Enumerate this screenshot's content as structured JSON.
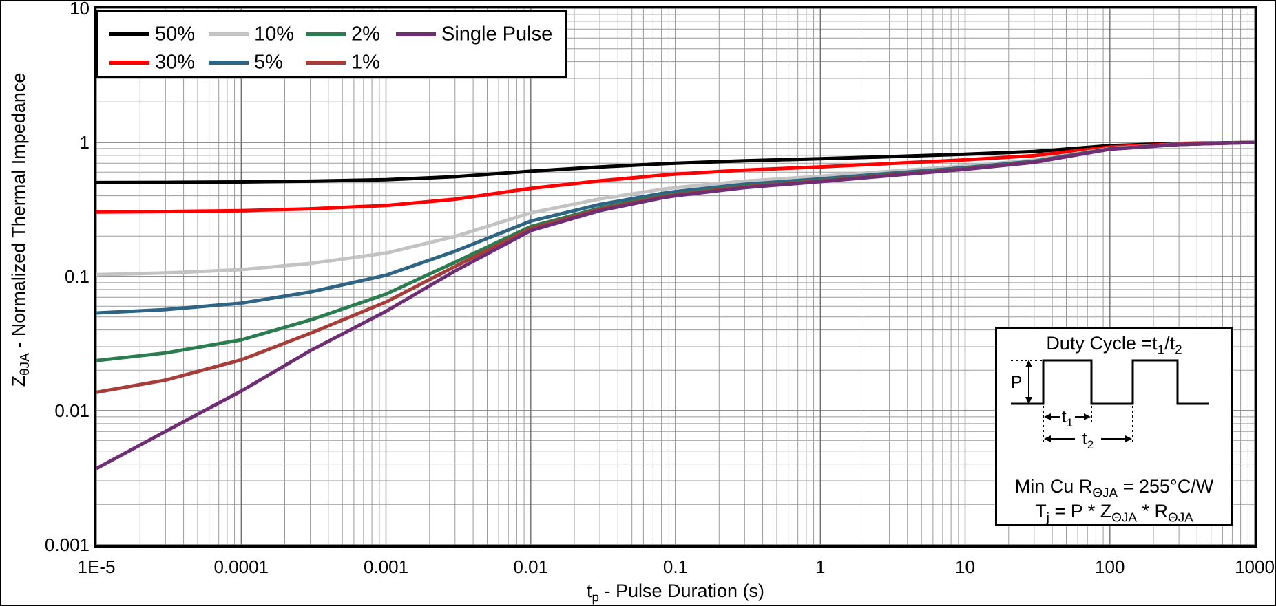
{
  "axes": {
    "x_title": {
      "base": "t",
      "sub": "p",
      "rest": " - Pulse Duration (s)"
    },
    "y_title": {
      "base": "Z",
      "sub": "θJA",
      "rest": " - Normalized Thermal Impedance"
    }
  },
  "inset": {
    "title": {
      "p1": "Duty Cycle =t",
      "s1": "1",
      "p2": "/t",
      "s2": "2"
    },
    "p_label": "P",
    "t1": {
      "base": "t",
      "sub": "1"
    },
    "t2": {
      "base": "t",
      "sub": "2"
    },
    "line1": {
      "p1": "Min Cu R",
      "s1": "ΘJA",
      "p2": " = 255°C/W"
    },
    "line2": {
      "p1": "T",
      "s1": "j",
      "p2": " = P * Z",
      "s2": "ΘJA",
      "p3": " * R",
      "s3": "ΘJA"
    }
  },
  "chart_data": {
    "type": "line",
    "title": "",
    "x_scale": "log",
    "y_scale": "log",
    "xlim": [
      1e-05,
      1000
    ],
    "ylim": [
      0.001,
      10
    ],
    "grid": true,
    "legend_position": "top-left",
    "xlabel": "tp - Pulse Duration (s)",
    "ylabel": "ZθJA - Normalized Thermal Impedance",
    "x_ticks": [
      "1E-5",
      "0.0001",
      "0.001",
      "0.01",
      "0.1",
      "1",
      "10",
      "100",
      "1000"
    ],
    "y_ticks": [
      "10",
      "1",
      "0.1",
      "0.01",
      "0.001"
    ],
    "x": [
      1e-05,
      3e-05,
      0.0001,
      0.0003,
      0.001,
      0.003,
      0.01,
      0.03,
      0.08,
      0.1,
      0.3,
      1,
      3,
      10,
      30,
      100,
      300,
      1000
    ],
    "series": [
      {
        "name": "50%",
        "color": "#000000",
        "values": [
          0.5019,
          0.5035,
          0.507,
          0.514,
          0.5275,
          0.555,
          0.61,
          0.655,
          0.6925,
          0.7,
          0.73,
          0.755,
          0.7825,
          0.815,
          0.855,
          0.945,
          0.9825,
          1.0
        ]
      },
      {
        "name": "30%",
        "color": "#ff0000",
        "values": [
          0.3026,
          0.3049,
          0.3098,
          0.3196,
          0.3385,
          0.377,
          0.454,
          0.517,
          0.5695,
          0.58,
          0.622,
          0.657,
          0.6955,
          0.741,
          0.797,
          0.923,
          0.9755,
          1.0
        ]
      },
      {
        "name": "10%",
        "color": "#c3c3c3",
        "values": [
          0.1033,
          0.1063,
          0.1126,
          0.1252,
          0.1495,
          0.199,
          0.298,
          0.379,
          0.4465,
          0.46,
          0.514,
          0.559,
          0.6085,
          0.667,
          0.739,
          0.901,
          0.9685,
          1.0
        ]
      },
      {
        "name": "5%",
        "color": "#2e6584",
        "values": [
          0.0535,
          0.0567,
          0.0633,
          0.0766,
          0.1023,
          0.1545,
          0.259,
          0.3445,
          0.4158,
          0.43,
          0.487,
          0.5345,
          0.5868,
          0.6485,
          0.7245,
          0.8955,
          0.9668,
          1.0
        ]
      },
      {
        "name": "2%",
        "color": "#2b7d4f",
        "values": [
          0.0236,
          0.0269,
          0.0337,
          0.0474,
          0.0739,
          0.1278,
          0.2356,
          0.3238,
          0.3973,
          0.412,
          0.4708,
          0.5198,
          0.5737,
          0.6374,
          0.7158,
          0.8922,
          0.9657,
          1.0
        ]
      },
      {
        "name": "1%",
        "color": "#a63d38",
        "values": [
          0.0137,
          0.0169,
          0.0239,
          0.0377,
          0.0645,
          0.1189,
          0.2278,
          0.3169,
          0.3912,
          0.406,
          0.4654,
          0.5149,
          0.5694,
          0.6337,
          0.7129,
          0.8911,
          0.9654,
          1.0
        ]
      },
      {
        "name": "Single Pulse",
        "color": "#6f2d73",
        "values": [
          0.0037,
          0.007,
          0.014,
          0.028,
          0.055,
          0.11,
          0.22,
          0.31,
          0.385,
          0.4,
          0.46,
          0.51,
          0.565,
          0.63,
          0.71,
          0.89,
          0.965,
          1.0
        ]
      }
    ]
  }
}
